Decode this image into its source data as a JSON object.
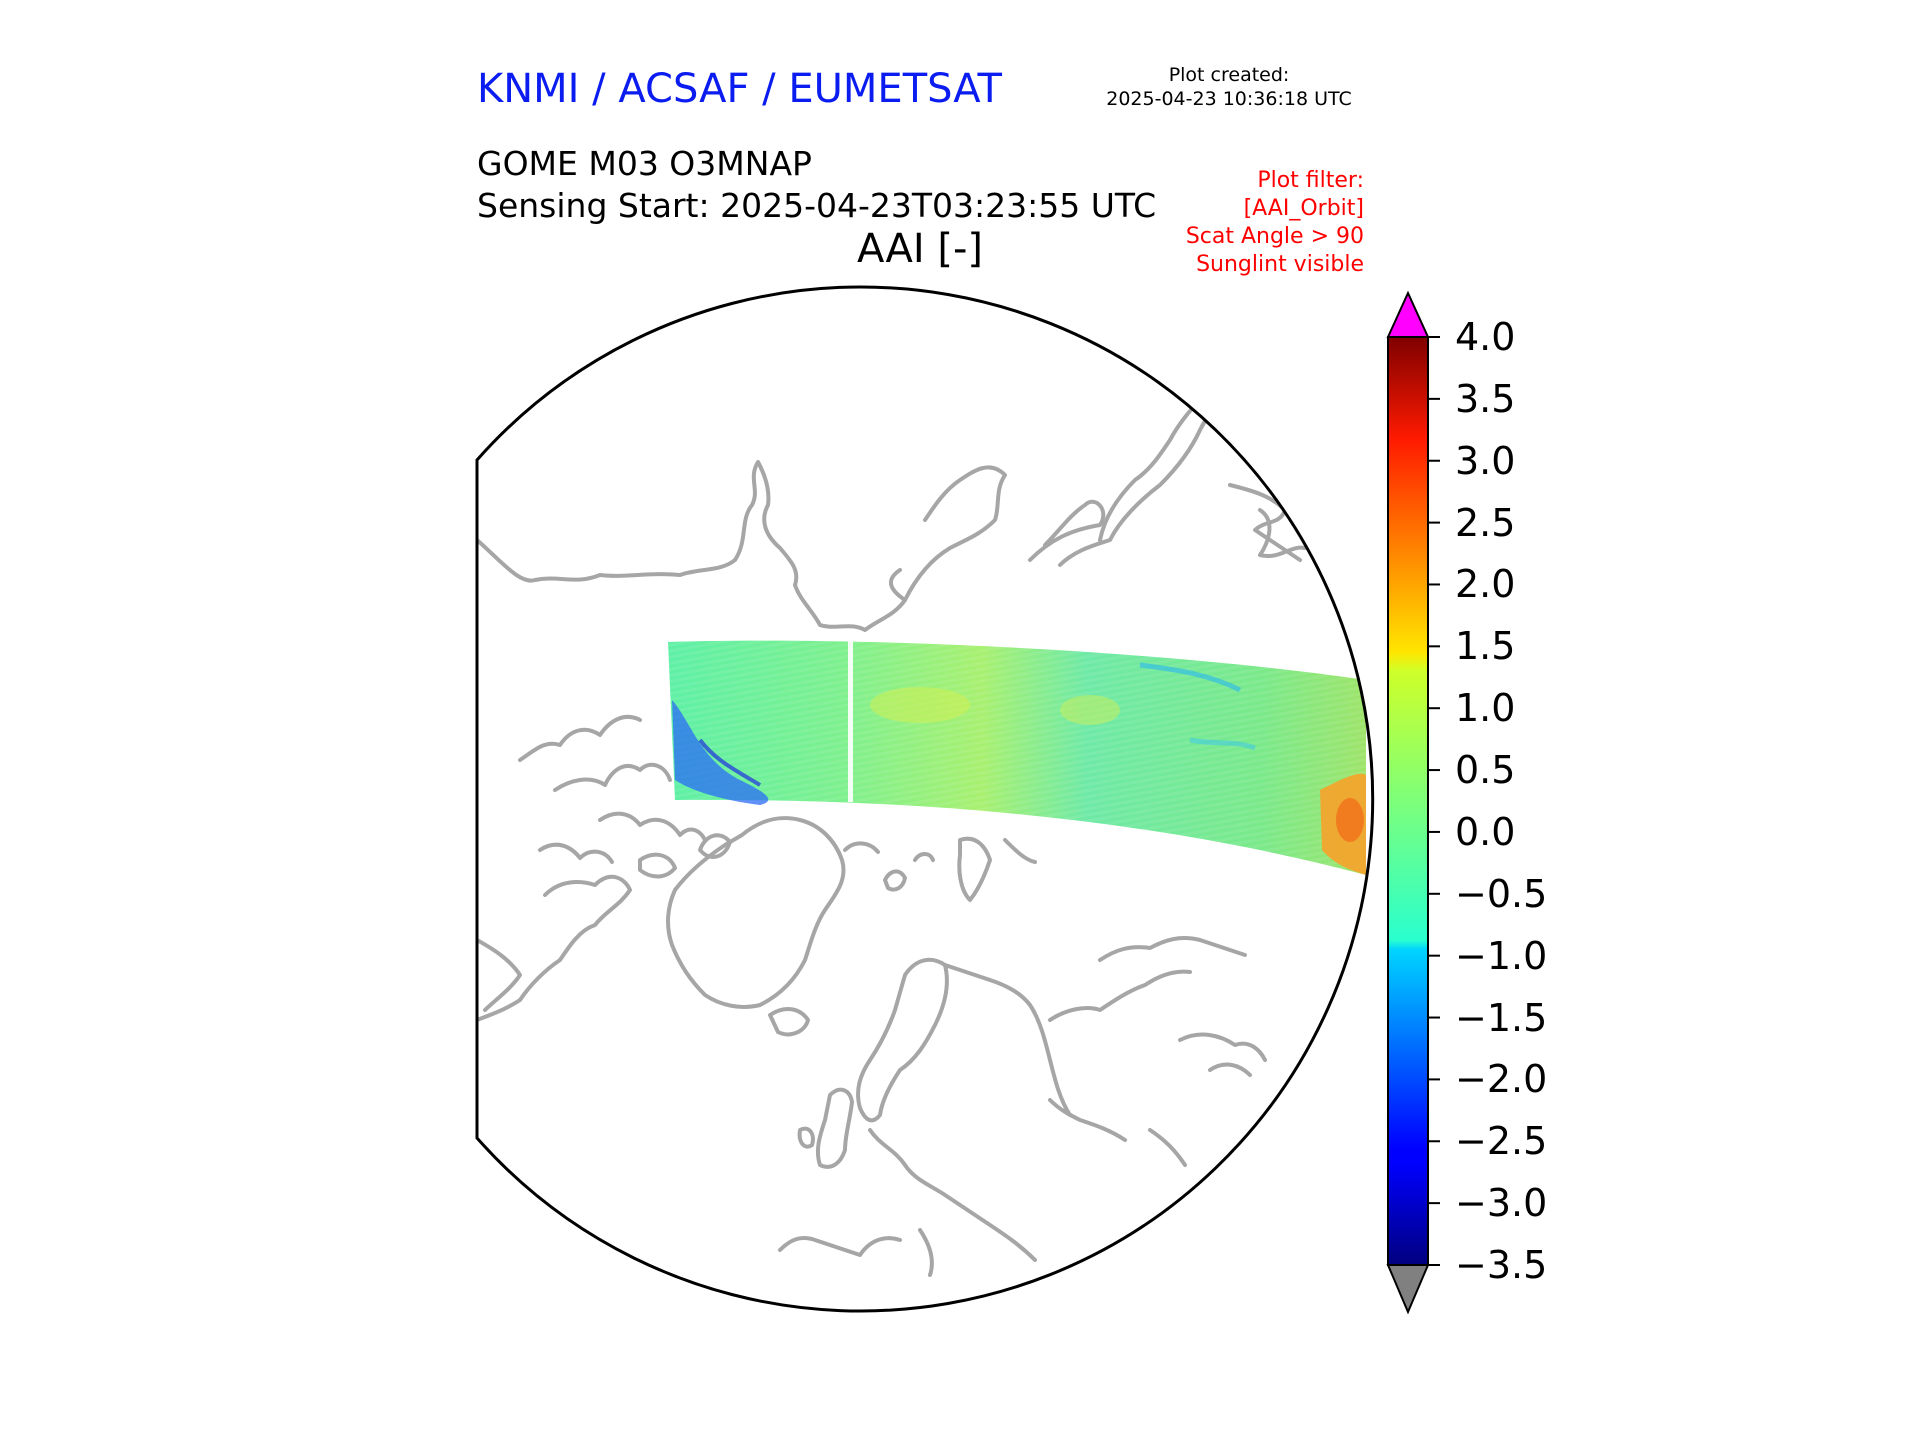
{
  "header": {
    "organization": "KNMI / ACSAF / EUMETSAT",
    "plot_created_label": "Plot created:",
    "plot_created_value": "2025-04-23 10:36:18 UTC",
    "product": "GOME M03 O3MNAP",
    "sensing_start": "Sensing Start: 2025-04-23T03:23:55 UTC",
    "variable_title": "AAI [-]",
    "filter_lines": [
      "Plot filter:",
      "[AAI_Orbit]",
      "Scat Angle > 90",
      "Sunglint visible"
    ]
  },
  "colorbar": {
    "ticks": [
      "4.0",
      "3.5",
      "3.0",
      "2.5",
      "2.0",
      "1.5",
      "1.0",
      "0.5",
      "0.0",
      "−0.5",
      "−1.0",
      "−1.5",
      "−2.0",
      "−2.5",
      "−3.0",
      "−3.5"
    ],
    "min": -3.5,
    "max": 4.0,
    "over_color": "#ff00ff",
    "under_color": "#808080",
    "colormap": "jet"
  },
  "map": {
    "projection": "north-polar-stereographic",
    "coastline_color": "#a6a6a6",
    "boundary_color": "#000000"
  }
}
